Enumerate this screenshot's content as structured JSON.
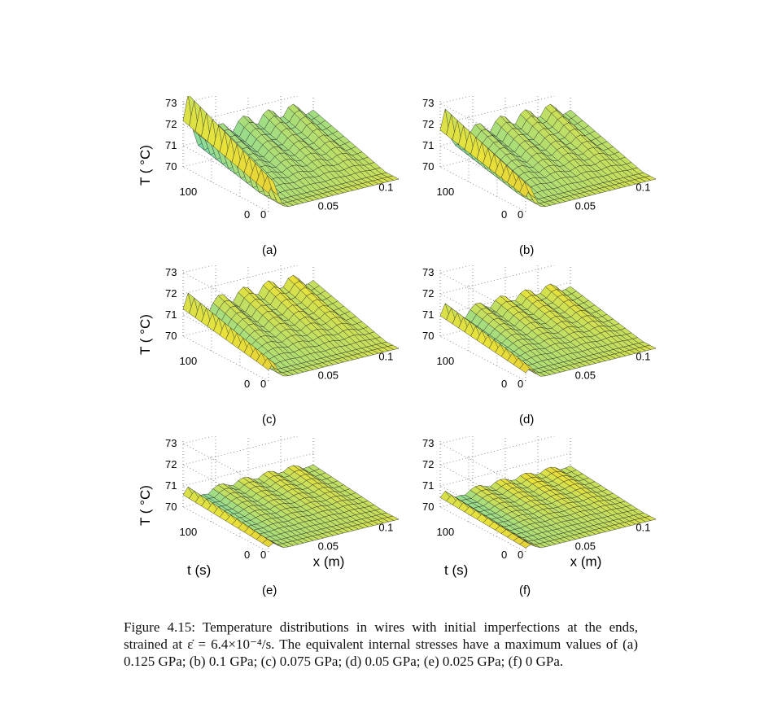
{
  "figure": {
    "panels": [
      {
        "label": "(a)",
        "y_ticks": [
          "73",
          "72",
          "71",
          "70"
        ],
        "t_tick_max": "100",
        "t_tick_min": "0",
        "x_tick_min": "0",
        "x_tick_mid": "0.05",
        "x_tick_max": "0.1",
        "y_label": "T ( °C)",
        "t_label": "",
        "x_label": ""
      },
      {
        "label": "(b)",
        "y_ticks": [
          "73",
          "72",
          "71",
          "70"
        ],
        "t_tick_max": "100",
        "t_tick_min": "0",
        "x_tick_min": "0",
        "x_tick_mid": "0.05",
        "x_tick_max": "0.1",
        "y_label": "",
        "t_label": "",
        "x_label": ""
      },
      {
        "label": "(c)",
        "y_ticks": [
          "73",
          "72",
          "71",
          "70"
        ],
        "t_tick_max": "100",
        "t_tick_min": "0",
        "x_tick_min": "0",
        "x_tick_mid": "0.05",
        "x_tick_max": "0.1",
        "y_label": "T ( °C)",
        "t_label": "",
        "x_label": ""
      },
      {
        "label": "(d)",
        "y_ticks": [
          "73",
          "72",
          "71",
          "70"
        ],
        "t_tick_max": "100",
        "t_tick_min": "0",
        "x_tick_min": "0",
        "x_tick_mid": "0.05",
        "x_tick_max": "0.1",
        "y_label": "",
        "t_label": "",
        "x_label": ""
      },
      {
        "label": "(e)",
        "y_ticks": [
          "73",
          "72",
          "71",
          "70"
        ],
        "t_tick_max": "100",
        "t_tick_min": "0",
        "x_tick_min": "0",
        "x_tick_mid": "0.05",
        "x_tick_max": "0.1",
        "y_label": "T ( °C)",
        "t_label": "t (s)",
        "x_label": "x (m)"
      },
      {
        "label": "(f)",
        "y_ticks": [
          "73",
          "72",
          "71",
          "70"
        ],
        "t_tick_max": "100",
        "t_tick_min": "0",
        "x_tick_min": "0",
        "x_tick_mid": "0.05",
        "x_tick_max": "0.1",
        "y_label": "",
        "t_label": "t (s)",
        "x_label": "x (m)"
      }
    ],
    "caption": "Figure 4.15: Temperature distributions in wires with initial imperfections at the ends, strained at ε̇ = 6.4×10⁻⁴/s. The equivalent internal stresses have a maximum values of (a) 0.125 GPa; (b) 0.1 GPa; (c) 0.075 GPa; (d) 0.05 GPa; (e) 0.025 GPa; (f) 0 GPa."
  },
  "colors": {
    "low": "#3fd6e8",
    "mid": "#e8e23a",
    "high": "#d23a1e",
    "grid": "#777777"
  },
  "chart_data": [
    {
      "type": "surface",
      "panel": "(a)",
      "ylim": [
        70,
        73
      ],
      "peak_T": 73.4,
      "plateau_T": 72.0
    },
    {
      "type": "surface",
      "panel": "(b)",
      "ylim": [
        70,
        73
      ],
      "peak_T": 72.7,
      "plateau_T": 72.0
    },
    {
      "type": "surface",
      "panel": "(c)",
      "ylim": [
        70,
        73
      ],
      "peak_T": 72.0,
      "plateau_T": 71.9
    },
    {
      "type": "surface",
      "panel": "(d)",
      "ylim": [
        70,
        73
      ],
      "peak_T": 71.5,
      "plateau_T": 71.4
    },
    {
      "type": "surface",
      "panel": "(e)",
      "ylim": [
        70,
        73
      ],
      "peak_T": 70.9,
      "plateau_T": 70.8
    },
    {
      "type": "surface",
      "panel": "(f)",
      "ylim": [
        70,
        73
      ],
      "peak_T": 70.7,
      "plateau_T": 70.7
    }
  ]
}
